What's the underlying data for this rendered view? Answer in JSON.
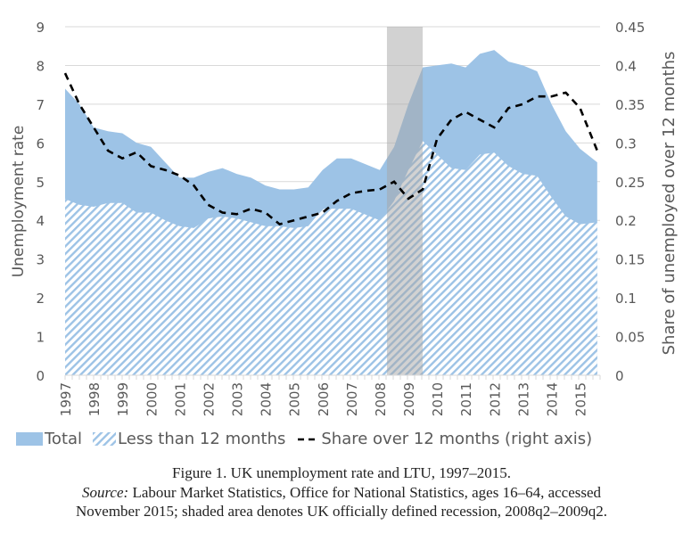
{
  "chart_data": {
    "type": "area",
    "title": "Figure 1.   UK unemployment rate and LTU, 1997–2015.",
    "ylabel": "Unemployment rate",
    "y2label": "Share of unemployed over 12 months",
    "ylim": [
      0,
      9
    ],
    "y2lim": [
      0,
      0.45
    ],
    "yticks": [
      "0",
      "1",
      "2",
      "3",
      "4",
      "5",
      "6",
      "7",
      "8",
      "9"
    ],
    "y2ticks": [
      "0",
      "0.05",
      "0.1",
      "0.15",
      "0.2",
      "0.25",
      "0.3",
      "0.35",
      "0.4",
      "0.45"
    ],
    "xticks": [
      "1997",
      "1998",
      "1999",
      "2000",
      "2001",
      "2002",
      "2003",
      "2004",
      "2005",
      "2006",
      "2007",
      "2008",
      "2009",
      "2010",
      "2011",
      "2012",
      "2013",
      "2014",
      "2015"
    ],
    "grid": true,
    "legend_position": "bottom",
    "recession": {
      "start": 2008.25,
      "end": 2009.5
    },
    "x": [
      1997.0,
      1997.5,
      1998.0,
      1998.5,
      1999.0,
      1999.5,
      2000.0,
      2000.5,
      2001.0,
      2001.5,
      2002.0,
      2002.5,
      2003.0,
      2003.5,
      2004.0,
      2004.5,
      2005.0,
      2005.5,
      2006.0,
      2006.5,
      2007.0,
      2007.5,
      2008.0,
      2008.5,
      2009.0,
      2009.5,
      2010.0,
      2010.5,
      2011.0,
      2011.5,
      2012.0,
      2012.5,
      2013.0,
      2013.5,
      2014.0,
      2014.5,
      2015.0,
      2015.6
    ],
    "series": [
      {
        "name": "Total",
        "axis": "left",
        "color": "#9DC3E6",
        "values": [
          7.4,
          7.0,
          6.4,
          6.3,
          6.25,
          6.0,
          5.9,
          5.5,
          5.1,
          5.1,
          5.25,
          5.35,
          5.2,
          5.1,
          4.9,
          4.8,
          4.8,
          4.85,
          5.3,
          5.6,
          5.6,
          5.45,
          5.3,
          5.9,
          7.0,
          7.95,
          8.0,
          8.05,
          7.95,
          8.3,
          8.4,
          8.1,
          8.0,
          7.85,
          7.0,
          6.3,
          5.85,
          5.5
        ]
      },
      {
        "name": "Less than 12 months",
        "axis": "left",
        "color": "#9DC3E6",
        "values": [
          4.55,
          4.4,
          4.35,
          4.45,
          4.45,
          4.2,
          4.2,
          4.0,
          3.85,
          3.8,
          4.05,
          4.1,
          4.05,
          3.95,
          3.85,
          3.85,
          3.8,
          3.85,
          4.3,
          4.3,
          4.3,
          4.15,
          4.0,
          4.5,
          5.3,
          6.05,
          5.7,
          5.35,
          5.3,
          5.7,
          5.75,
          5.4,
          5.2,
          5.15,
          4.6,
          4.1,
          3.9,
          3.95
        ]
      },
      {
        "name": "Share over 12 months (right axis)",
        "axis": "right",
        "color": "#000000",
        "values": [
          0.39,
          0.35,
          0.32,
          0.29,
          0.28,
          0.288,
          0.27,
          0.265,
          0.258,
          0.245,
          0.22,
          0.21,
          0.208,
          0.215,
          0.21,
          0.195,
          0.2,
          0.205,
          0.21,
          0.225,
          0.235,
          0.238,
          0.24,
          0.25,
          0.228,
          0.24,
          0.305,
          0.33,
          0.34,
          0.33,
          0.32,
          0.345,
          0.35,
          0.36,
          0.36,
          0.365,
          0.345,
          0.29
        ]
      }
    ]
  },
  "legend": {
    "total": "Total",
    "less": "Less than 12 months",
    "share": "Share over 12 months (right axis)"
  },
  "caption": {
    "line1": "Figure 1.   UK unemployment rate and LTU, 1997–2015.",
    "source_label": "Source:",
    "line2_rest": " Labour Market Statistics, Office for National Statistics, ages 16–64, accessed",
    "line3": "November 2015; shaded area denotes UK officially defined recession, 2008q2–2009q2."
  }
}
